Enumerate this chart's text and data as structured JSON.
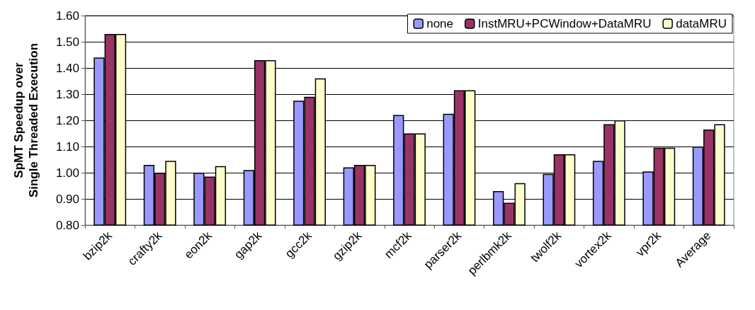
{
  "chart_data": {
    "type": "bar",
    "ylabel": "SpMT Speedup over\nSingle Threaded Execution",
    "categories": [
      "bzip2k",
      "crafty2k",
      "eon2k",
      "gap2k",
      "gcc2k",
      "gzip2k",
      "mcf2k",
      "parser2k",
      "perlbmk2k",
      "twolf2k",
      "vortex2k",
      "vpr2k",
      "Average"
    ],
    "series": [
      {
        "name": "none",
        "color": "#9999ff",
        "values": [
          1.44,
          1.03,
          1.0,
          1.01,
          1.275,
          1.02,
          1.22,
          1.225,
          0.93,
          0.995,
          1.045,
          1.005,
          1.1
        ]
      },
      {
        "name": "InstMRU+PCWindow+DataMRU",
        "color": "#993366",
        "values": [
          1.53,
          1.0,
          0.985,
          1.43,
          1.29,
          1.03,
          1.15,
          1.315,
          0.885,
          1.07,
          1.185,
          1.095,
          1.165
        ]
      },
      {
        "name": "dataMRU",
        "color": "#ffffcc",
        "values": [
          1.53,
          1.045,
          1.025,
          1.43,
          1.36,
          1.03,
          1.15,
          1.315,
          0.96,
          1.07,
          1.2,
          1.095,
          1.185
        ]
      }
    ],
    "ylim": [
      0.8,
      1.6
    ],
    "yticks": [
      {
        "value": 0.8,
        "label": "0.80"
      },
      {
        "value": 0.9,
        "label": "0.90"
      },
      {
        "value": 1.0,
        "label": "1.00"
      },
      {
        "value": 1.1,
        "label": "1.10"
      },
      {
        "value": 1.2,
        "label": "1.20"
      },
      {
        "value": 1.3,
        "label": "1.30"
      },
      {
        "value": 1.4,
        "label": "1.40"
      },
      {
        "value": 1.5,
        "label": "1.50"
      },
      {
        "value": 1.6,
        "label": "1.60"
      }
    ],
    "grid": "y",
    "legend": "top right"
  }
}
